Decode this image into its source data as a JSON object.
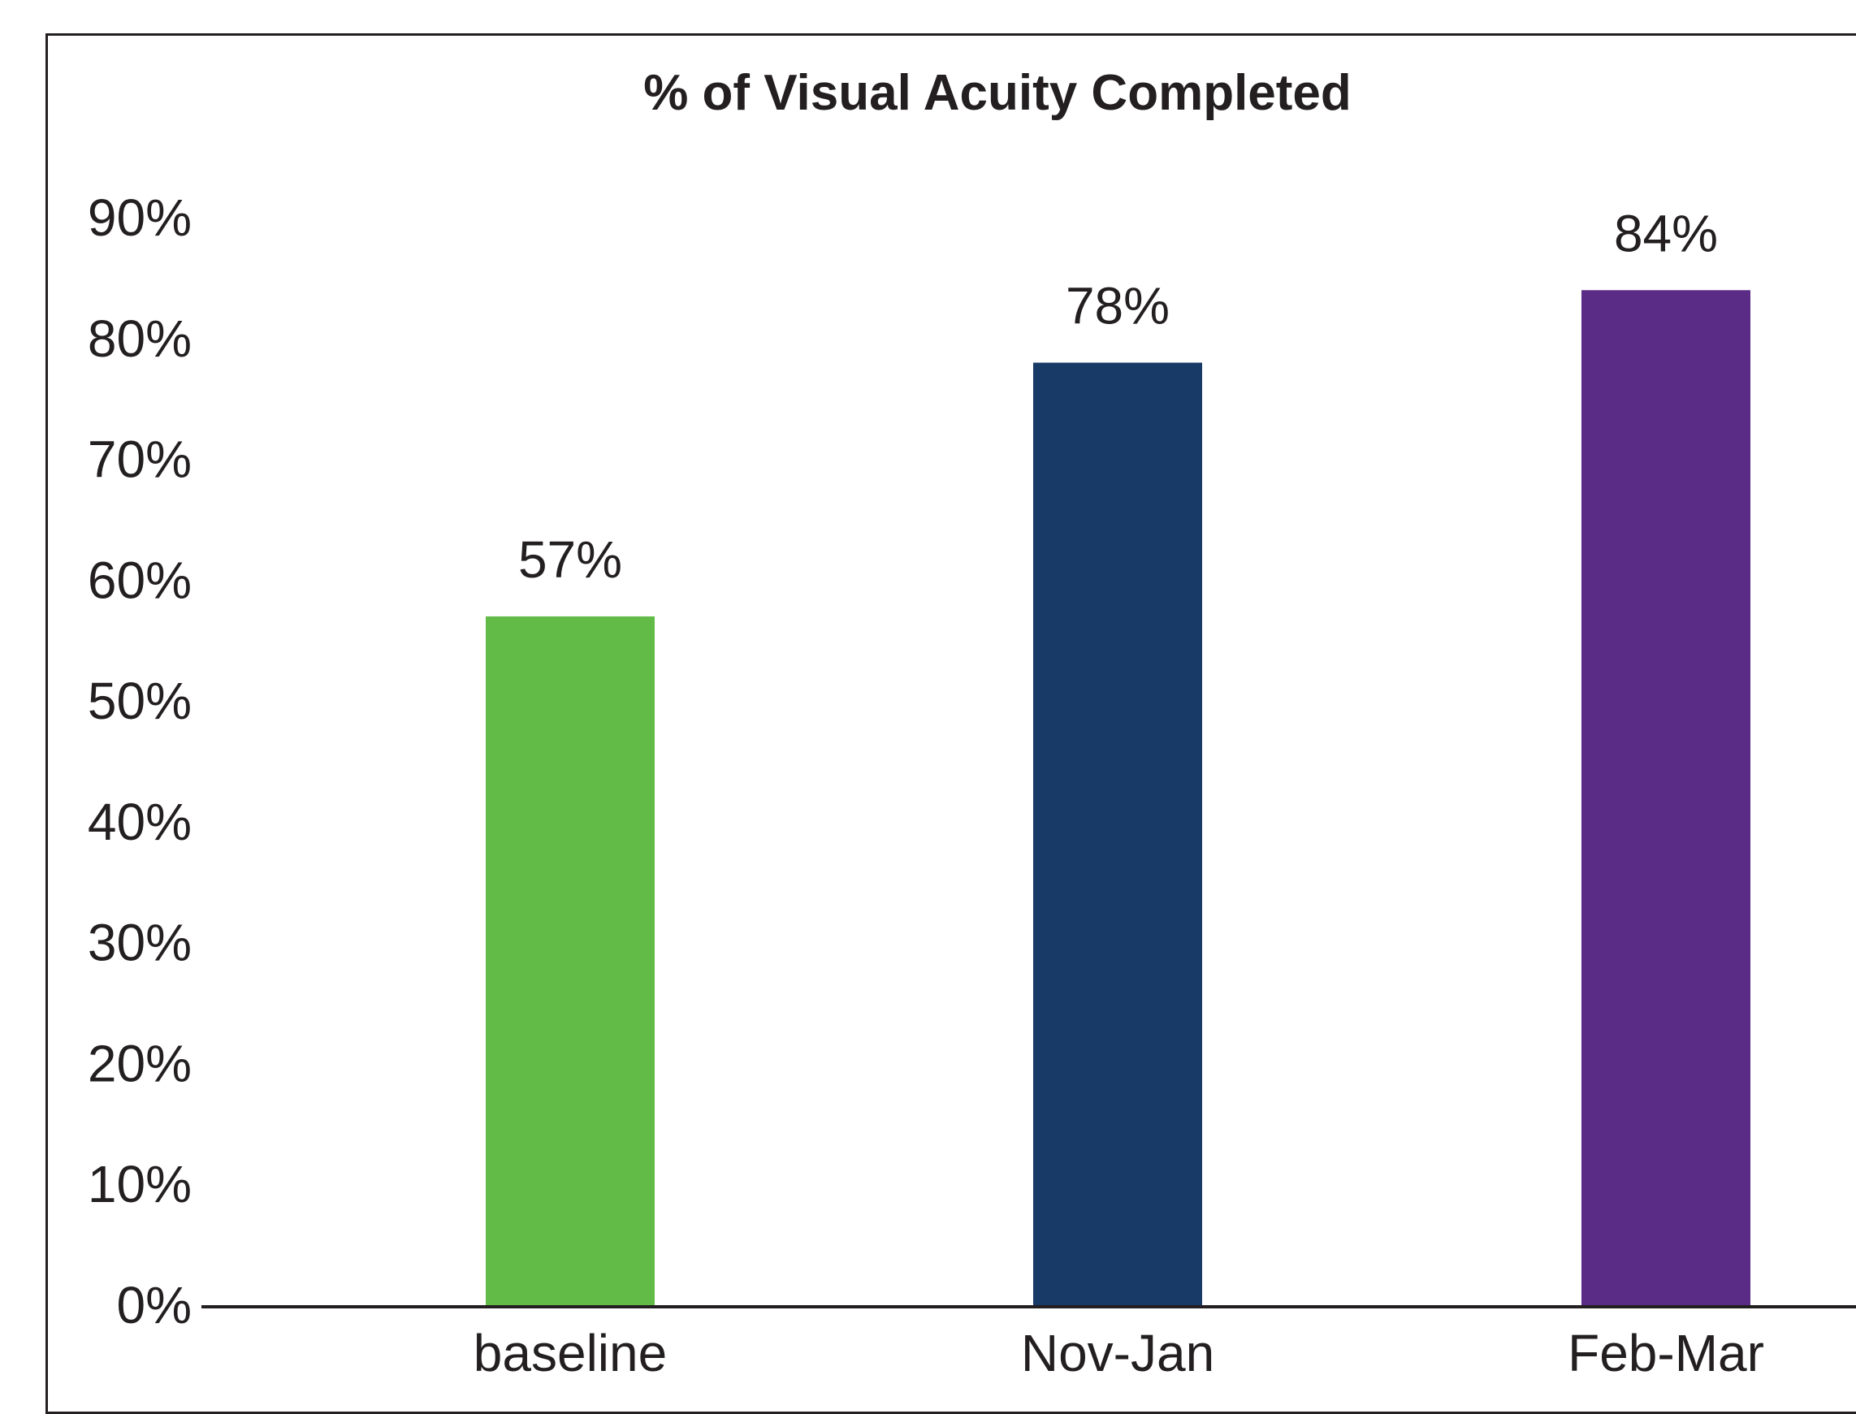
{
  "chart_data": {
    "type": "bar",
    "title": "% of Visual Acuity Completed",
    "xlabel": "",
    "ylabel": "",
    "categories": [
      "baseline",
      "Nov-Jan",
      "Feb-Mar"
    ],
    "values": [
      57,
      78,
      84
    ],
    "data_labels": [
      "57%",
      "78%",
      "84%"
    ],
    "colors": [
      "#62bb46",
      "#173a67",
      "#5b2c86"
    ],
    "ylim": [
      0,
      90
    ],
    "yticks": [
      0,
      10,
      20,
      30,
      40,
      50,
      60,
      70,
      80,
      90
    ],
    "ytick_labels": [
      "0%",
      "10%",
      "20%",
      "30%",
      "40%",
      "50%",
      "60%",
      "70%",
      "80%",
      "90%"
    ],
    "grid": false,
    "legend": "none"
  }
}
